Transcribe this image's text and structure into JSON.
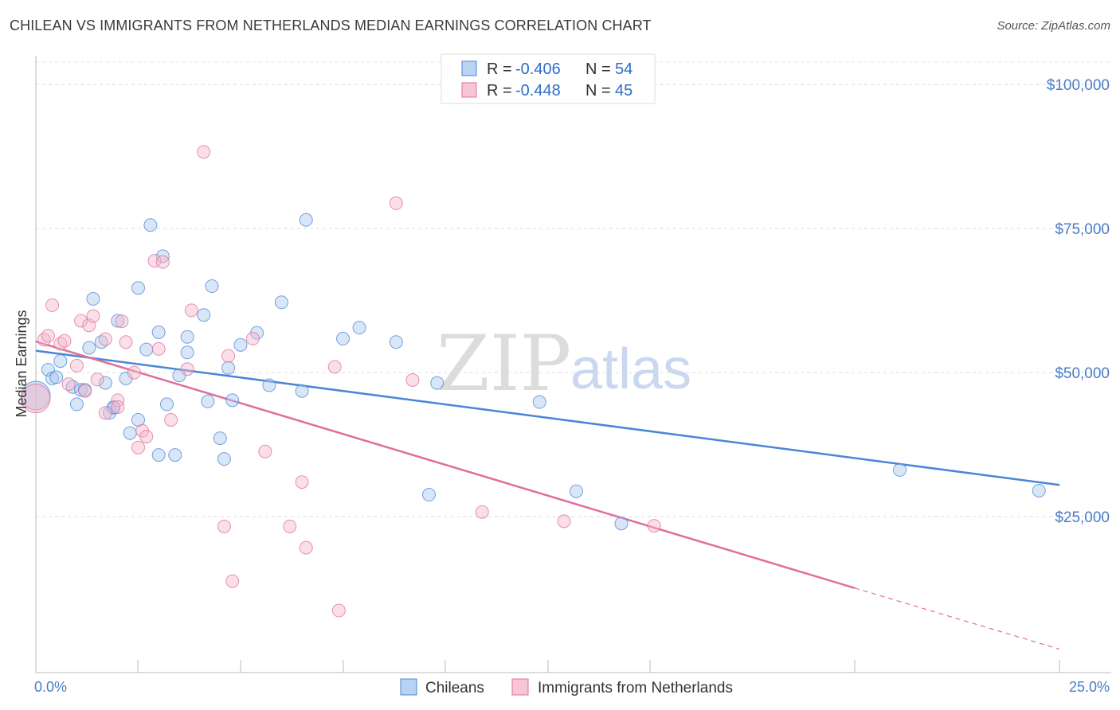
{
  "header": {
    "title": "CHILEAN VS IMMIGRANTS FROM NETHERLANDS MEDIAN EARNINGS CORRELATION CHART",
    "source": "Source: ZipAtlas.com"
  },
  "watermark": {
    "zip": "ZIP",
    "atlas": "atlas"
  },
  "legend": {
    "r_label": "R =",
    "n_label": "N =",
    "entries": [
      {
        "r": "-0.406",
        "n": "54",
        "color": "#a8c8f0"
      },
      {
        "r": "-0.448",
        "n": "45",
        "color": "#f5b8cb"
      }
    ]
  },
  "chart_data": {
    "type": "scatter",
    "title": "CHILEAN VS IMMIGRANTS FROM NETHERLANDS MEDIAN EARNINGS CORRELATION CHART",
    "xlabel": "",
    "ylabel": "Median Earnings",
    "xlim": [
      0,
      25
    ],
    "ylim": [
      0,
      105000
    ],
    "x_tick_labels": [
      "0.0%",
      "25.0%"
    ],
    "y_ticks": [
      25000,
      50000,
      75000,
      100000
    ],
    "y_tick_labels": [
      "$25,000",
      "$50,000",
      "$75,000",
      "$100,000"
    ],
    "grid": "horizontal dashed",
    "legend_position": "top-center",
    "series": [
      {
        "name": "Chileans",
        "color": "#4a86d6",
        "fill": "#a8c8f0",
        "trend": {
          "x": [
            0,
            25
          ],
          "y": [
            53800,
            30500
          ]
        },
        "points": [
          [
            0.0,
            46000
          ],
          [
            0.3,
            50500
          ],
          [
            0.4,
            49000
          ],
          [
            0.5,
            49200
          ],
          [
            0.6,
            52000
          ],
          [
            0.9,
            47500
          ],
          [
            1.0,
            44500
          ],
          [
            1.1,
            47000
          ],
          [
            1.2,
            47000
          ],
          [
            1.3,
            54300
          ],
          [
            1.4,
            62800
          ],
          [
            1.6,
            55300
          ],
          [
            1.7,
            48200
          ],
          [
            1.8,
            43000
          ],
          [
            1.9,
            44000
          ],
          [
            2.0,
            59000
          ],
          [
            2.2,
            49000
          ],
          [
            2.3,
            39500
          ],
          [
            2.5,
            41800
          ],
          [
            2.5,
            64700
          ],
          [
            2.7,
            54000
          ],
          [
            2.8,
            75600
          ],
          [
            3.0,
            57000
          ],
          [
            3.0,
            35700
          ],
          [
            3.1,
            70200
          ],
          [
            3.2,
            44500
          ],
          [
            3.4,
            35700
          ],
          [
            3.5,
            49500
          ],
          [
            3.7,
            56200
          ],
          [
            3.7,
            53500
          ],
          [
            4.1,
            60000
          ],
          [
            4.2,
            45000
          ],
          [
            4.3,
            65000
          ],
          [
            4.5,
            38600
          ],
          [
            4.6,
            35000
          ],
          [
            4.7,
            50800
          ],
          [
            4.8,
            45200
          ],
          [
            5.0,
            54800
          ],
          [
            5.4,
            56900
          ],
          [
            5.7,
            47800
          ],
          [
            6.0,
            62200
          ],
          [
            6.5,
            46800
          ],
          [
            6.6,
            76500
          ],
          [
            7.5,
            55900
          ],
          [
            7.9,
            57800
          ],
          [
            8.8,
            55300
          ],
          [
            9.6,
            28800
          ],
          [
            9.8,
            48200
          ],
          [
            12.3,
            44900
          ],
          [
            13.2,
            29400
          ],
          [
            14.3,
            23800
          ],
          [
            21.1,
            33100
          ],
          [
            24.5,
            29500
          ],
          [
            1.9,
            43900
          ]
        ]
      },
      {
        "name": "Immigrants from Netherlands",
        "color": "#e06f98",
        "fill": "#f5b8cb",
        "trend": {
          "x": [
            0,
            20
          ],
          "y": [
            55400,
            12600
          ]
        },
        "trend_dashed": {
          "x": [
            20,
            25
          ],
          "y": [
            12600,
            2000
          ]
        },
        "points": [
          [
            0.2,
            55700
          ],
          [
            0.3,
            56400
          ],
          [
            0.4,
            61700
          ],
          [
            0.6,
            55000
          ],
          [
            0.7,
            55500
          ],
          [
            0.8,
            48000
          ],
          [
            1.0,
            51200
          ],
          [
            1.1,
            59000
          ],
          [
            1.2,
            46800
          ],
          [
            1.3,
            58200
          ],
          [
            1.4,
            59800
          ],
          [
            1.5,
            48800
          ],
          [
            1.7,
            55800
          ],
          [
            1.7,
            43000
          ],
          [
            2.0,
            45200
          ],
          [
            2.0,
            44000
          ],
          [
            2.1,
            58900
          ],
          [
            2.2,
            55300
          ],
          [
            2.4,
            50000
          ],
          [
            2.5,
            37000
          ],
          [
            2.6,
            39900
          ],
          [
            2.7,
            38900
          ],
          [
            2.9,
            69400
          ],
          [
            3.0,
            54100
          ],
          [
            3.1,
            69200
          ],
          [
            3.3,
            41800
          ],
          [
            3.7,
            50600
          ],
          [
            3.8,
            60800
          ],
          [
            4.1,
            88300
          ],
          [
            4.6,
            23300
          ],
          [
            4.7,
            52900
          ],
          [
            4.8,
            13800
          ],
          [
            5.3,
            55900
          ],
          [
            5.6,
            36300
          ],
          [
            6.2,
            23300
          ],
          [
            6.5,
            31000
          ],
          [
            6.6,
            19600
          ],
          [
            7.3,
            51000
          ],
          [
            7.4,
            8700
          ],
          [
            8.8,
            79400
          ],
          [
            9.2,
            48700
          ],
          [
            10.9,
            25800
          ],
          [
            12.9,
            24200
          ],
          [
            15.1,
            23400
          ],
          [
            0.0,
            45500
          ]
        ]
      }
    ]
  },
  "bottom_legend": [
    {
      "label": "Chileans",
      "color": "#a8c8f0"
    },
    {
      "label": "Immigrants from Netherlands",
      "color": "#f5b8cb"
    }
  ]
}
